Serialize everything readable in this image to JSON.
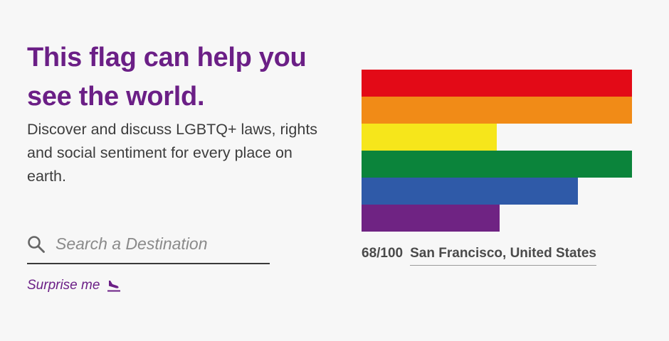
{
  "hero": {
    "headline": "This flag can help you see the world.",
    "subtitle": "Discover and discuss LGBTQ+ laws, rights and social sentiment for every place on earth."
  },
  "search": {
    "placeholder": "Search a Destination",
    "value": "",
    "icon": "search-icon"
  },
  "surprise": {
    "label": "Surprise me",
    "icon": "plane-landing-icon"
  },
  "flag": {
    "stripes": [
      {
        "color": "#e30a17",
        "fill": 1.0
      },
      {
        "color": "#f18b17",
        "fill": 1.0
      },
      {
        "color": "#f6e61b",
        "fill": 0.5
      },
      {
        "color": "#0b843b",
        "fill": 1.0
      },
      {
        "color": "#2f5aa8",
        "fill": 0.8
      },
      {
        "color": "#6f2383",
        "fill": 0.51
      }
    ]
  },
  "featured": {
    "score": "68/100",
    "location": "San Francisco, United States"
  },
  "colors": {
    "brand": "#6b1f86",
    "text": "#3d3d3d",
    "background": "#f7f7f7"
  }
}
